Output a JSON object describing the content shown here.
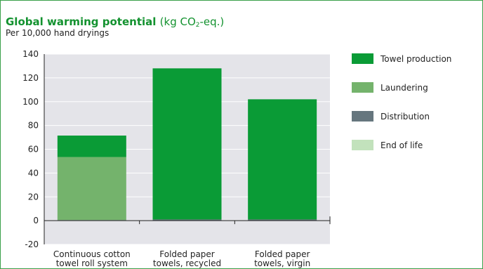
{
  "header": {
    "title_main": "Global warming potential",
    "title_unit_prefix": "(kg CO",
    "title_unit_sub": "2",
    "title_unit_suffix": "-eq.)",
    "subtitle": "Per 10,000 hand dryings"
  },
  "colors": {
    "frame": "#3aa04a",
    "plot_bg": "#e4e4e9",
    "towel_production": "#0a9b36",
    "laundering": "#74b36c",
    "distribution": "#66767e",
    "end_of_life": "#c2e2bc"
  },
  "chart_data": {
    "type": "bar",
    "stacked": true,
    "title": "Global warming potential (kg CO2-eq.)",
    "subtitle": "Per 10,000 hand dryings",
    "xlabel": "",
    "ylabel": "",
    "ylim": [
      -20,
      140
    ],
    "yticks": [
      -20,
      0,
      20,
      40,
      60,
      80,
      100,
      120,
      140
    ],
    "grid": true,
    "legend_position": "right",
    "categories": [
      [
        "Continuous cotton",
        "towel roll system"
      ],
      [
        "Folded paper",
        "towels, recycled"
      ],
      [
        "Folded paper",
        "towels, virgin"
      ]
    ],
    "series": [
      {
        "name": "Towel production",
        "color": "#0a9b36",
        "values": [
          18,
          127,
          101
        ]
      },
      {
        "name": "Laundering",
        "color": "#74b36c",
        "values": [
          53,
          0,
          0
        ]
      },
      {
        "name": "Distribution",
        "color": "#66767e",
        "values": [
          0.5,
          1,
          1
        ]
      },
      {
        "name": "End of life",
        "color": "#c2e2bc",
        "values": [
          0,
          0,
          0
        ]
      }
    ]
  }
}
